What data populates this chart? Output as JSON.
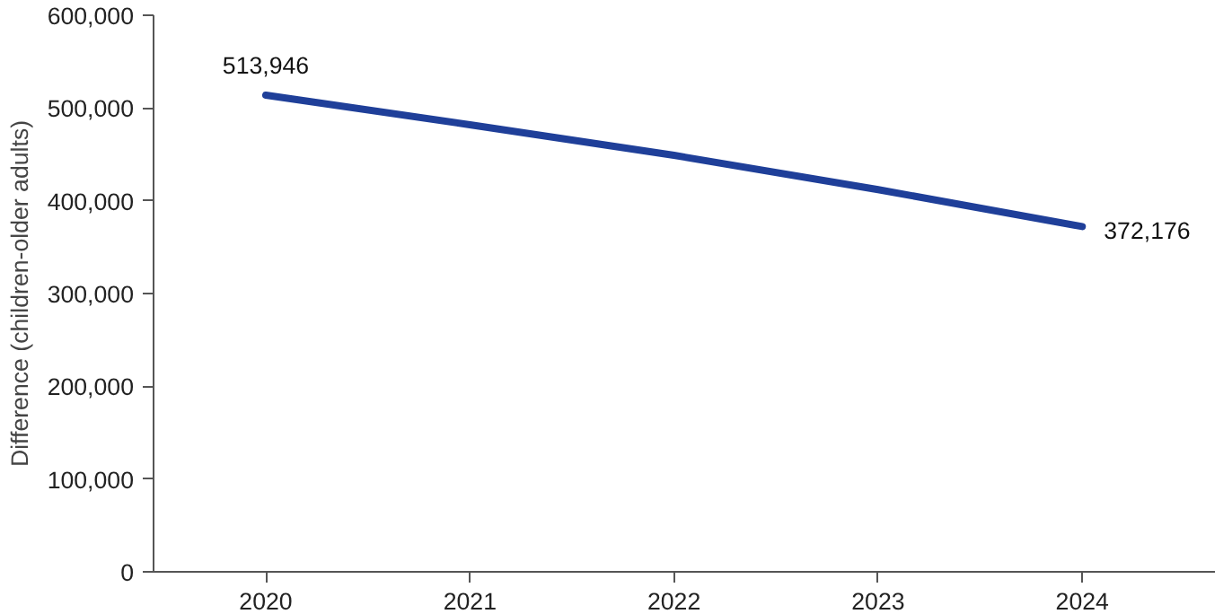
{
  "chart_data": {
    "type": "line",
    "ylabel": "Difference (children-older adults)",
    "x": [
      2020,
      2021,
      2022,
      2023,
      2024
    ],
    "series": [
      {
        "color": "#1f3f99",
        "values": [
          513946,
          482000,
          449000,
          412000,
          372176
        ],
        "value_labels": [
          "513,946",
          null,
          null,
          null,
          "372,176"
        ]
      }
    ],
    "xlim": [
      2019.45,
      2024.65
    ],
    "xticks": [
      2020,
      2021,
      2022,
      2023,
      2024
    ],
    "ylim": [
      0,
      600000
    ],
    "yticks": [
      {
        "value": 0,
        "label": "0"
      },
      {
        "value": 100000,
        "label": "100,000"
      },
      {
        "value": 200000,
        "label": "200,000"
      },
      {
        "value": 300000,
        "label": "300,000"
      },
      {
        "value": 400000,
        "label": "400,000"
      },
      {
        "value": 500000,
        "label": "500,000"
      },
      {
        "value": 600000,
        "label": "600,000"
      }
    ],
    "grid": false,
    "marker": "none",
    "line_style": "solid"
  }
}
